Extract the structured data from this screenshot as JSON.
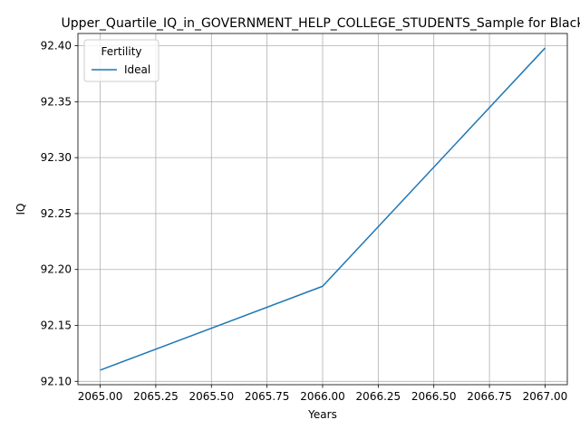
{
  "chart_data": {
    "type": "line",
    "title": "Upper_Quartile_IQ_in_GOVERNMENT_HELP_COLLEGE_STUDENTS_Sample for Black",
    "xlabel": "Years",
    "ylabel": "IQ",
    "xlim": [
      2064.9,
      2067.1
    ],
    "ylim": [
      92.097,
      92.411
    ],
    "x_ticks": [
      2065.0,
      2065.25,
      2065.5,
      2065.75,
      2066.0,
      2066.25,
      2066.5,
      2066.75,
      2067.0
    ],
    "x_tick_labels": [
      "2065.00",
      "2065.25",
      "2065.50",
      "2065.75",
      "2066.00",
      "2066.25",
      "2066.50",
      "2066.75",
      "2067.00"
    ],
    "y_ticks": [
      92.1,
      92.15,
      92.2,
      92.25,
      92.3,
      92.35,
      92.4
    ],
    "y_tick_labels": [
      "92.10",
      "92.15",
      "92.20",
      "92.25",
      "92.30",
      "92.35",
      "92.40"
    ],
    "grid": true,
    "legend": {
      "title": "Fertility",
      "placement": "upper-left"
    },
    "series": [
      {
        "name": "Ideal",
        "color": "#1f77b4",
        "x": [
          2065,
          2066,
          2067
        ],
        "y": [
          92.11,
          92.185,
          92.398
        ]
      }
    ]
  }
}
